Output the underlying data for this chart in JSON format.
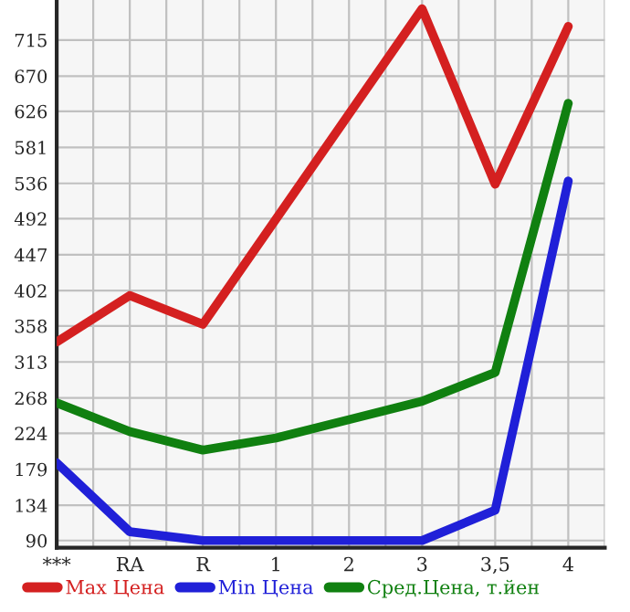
{
  "chart_data": {
    "type": "line",
    "categories": [
      "***",
      "RA",
      "R",
      "1",
      "2",
      "3",
      "3,5",
      "4"
    ],
    "series": [
      {
        "name": "Max Цена",
        "color": "#d42020",
        "values": [
          338,
          396,
          360,
          null,
          null,
          754,
          535,
          732
        ]
      },
      {
        "name": "Min Цена",
        "color": "#2020d8",
        "values": [
          187,
          101,
          90,
          90,
          90,
          90,
          128,
          539
        ]
      },
      {
        "name": "Сред.Цена, т.йен",
        "color": "#108010",
        "values": [
          262,
          226,
          203,
          218,
          241,
          264,
          300,
          636
        ]
      }
    ],
    "ylim": [
      81,
      765
    ],
    "yticks": [
      90,
      134,
      179,
      224,
      268,
      313,
      358,
      402,
      447,
      492,
      536,
      581,
      626,
      670,
      715
    ],
    "grid": true,
    "legend": "bottom",
    "marker": "none",
    "line_style": "solid"
  }
}
